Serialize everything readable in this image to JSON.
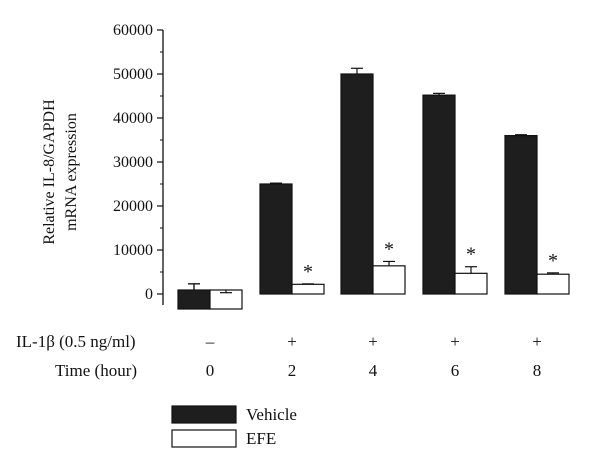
{
  "chart_data": {
    "type": "bar",
    "ylabel_lines": [
      "Relative IL-8/GAPDH",
      "mRNA expression"
    ],
    "ylim": [
      0,
      60000
    ],
    "yticks": [
      "0",
      "10000",
      "20000",
      "30000",
      "40000",
      "50000",
      "60000"
    ],
    "categories": [
      "0",
      "2",
      "4",
      "6",
      "8"
    ],
    "treatment_label": "IL-1β (0.5 ng/ml)",
    "treatment_values": [
      "–",
      "+",
      "+",
      "+",
      "+"
    ],
    "time_label": "Time (hour)",
    "time_values": [
      "0",
      "2",
      "4",
      "6",
      "8"
    ],
    "series": [
      {
        "name": "Vehicle",
        "color": "#1e1e1e",
        "values": [
          0,
          25000,
          50000,
          45200,
          36000
        ],
        "errors": [
          2300,
          200,
          1300,
          400,
          200
        ]
      },
      {
        "name": "EFE",
        "color": "#ffffff",
        "values": [
          0,
          2200,
          6400,
          4700,
          4500
        ],
        "errors": [
          300,
          100,
          1000,
          1500,
          300
        ]
      }
    ],
    "significance_marker": "*",
    "significance_flags": [
      false,
      true,
      true,
      true,
      true
    ],
    "legend_placement": "bottom-left",
    "grid": false
  }
}
